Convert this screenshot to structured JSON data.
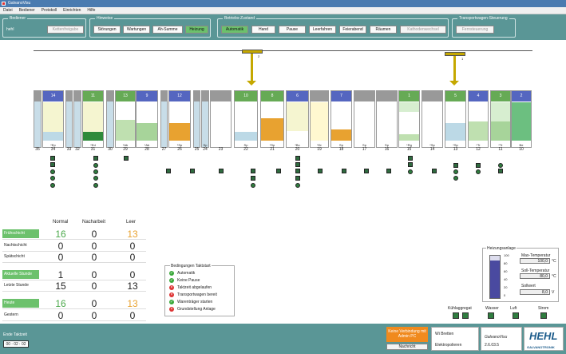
{
  "app": {
    "title": "GalvanoVisu"
  },
  "menu": [
    "Datei",
    "Bediener",
    "Protokoll",
    "Einrichten",
    "Hilfe"
  ],
  "ribbon": {
    "bediener": {
      "label": "Bediener",
      "user": "hehl",
      "button": "Kettenfreigabe"
    },
    "hinweise": {
      "label": "Hinweise",
      "buttons": [
        "Störungen",
        "Wartungen",
        "Ah-Summe",
        "Heizung"
      ]
    },
    "zustand": {
      "label": "Betriebs-Zustand",
      "buttons": [
        "Automatik",
        "Hand",
        "Pause",
        "Leerfahren",
        "Feierabend",
        "Räumen",
        "Kathodenwechsel"
      ]
    },
    "transport": {
      "label": "Transportwagen-Steuerung",
      "button": "Fernsteuerung"
    }
  },
  "carriers": [
    {
      "label": "2"
    },
    {
      "label": "1"
    }
  ],
  "stations": [
    {
      "hdr": "",
      "name": "",
      "nr": "35",
      "color": "gray"
    },
    {
      "hdr": "14",
      "name": "*Ep",
      "nr": "34",
      "color": "blue"
    },
    {
      "hdr": "",
      "name": "",
      "nr": "33",
      "color": "gray"
    },
    {
      "hdr": "",
      "name": "",
      "nr": "32",
      "color": "gray"
    },
    {
      "hdr": "11",
      "name": "*Ed",
      "nr": "31",
      "color": "green"
    },
    {
      "hdr": "",
      "name": "",
      "nr": "30",
      "color": "gray"
    },
    {
      "hdr": "13",
      "name": "*Ab",
      "nr": "29",
      "color": "green"
    },
    {
      "hdr": "9",
      "name": "*Ab",
      "nr": "28",
      "color": "blue"
    },
    {
      "hdr": "",
      "name": "",
      "nr": "27",
      "color": "gray"
    },
    {
      "hdr": "12",
      "name": "*Sp",
      "nr": "26",
      "color": "blue"
    },
    {
      "hdr": "",
      "name": "",
      "nr": "25",
      "color": "gray"
    },
    {
      "hdr": "",
      "name": "Sp",
      "nr": "24",
      "color": "gray"
    },
    {
      "hdr": "",
      "name": "",
      "nr": "23",
      "color": "gray"
    },
    {
      "hdr": "10",
      "name": "Sp",
      "nr": "22",
      "color": "green"
    },
    {
      "hdr": "8",
      "name": "*Sp",
      "nr": "21",
      "color": "green"
    },
    {
      "hdr": "6",
      "name": "*Bc",
      "nr": "20",
      "color": "blue"
    },
    {
      "hdr": "",
      "name": "*Dr",
      "nr": "19",
      "color": "gray"
    },
    {
      "hdr": "7",
      "name": "Sp",
      "nr": "18",
      "color": "blue"
    },
    {
      "hdr": "",
      "name": "Sp",
      "nr": "17",
      "color": "gray"
    },
    {
      "hdr": "",
      "name": "Sp",
      "nr": "16",
      "color": "gray"
    },
    {
      "hdr": "1",
      "name": "*Rg",
      "nr": "15",
      "color": "green"
    },
    {
      "hdr": "",
      "name": "*Sp",
      "nr": "14",
      "color": "gray"
    },
    {
      "hdr": "5",
      "name": "*Sp",
      "nr": "13",
      "color": "green"
    },
    {
      "hdr": "4",
      "name": "*Tr",
      "nr": "12",
      "color": "blue"
    },
    {
      "hdr": "3",
      "name": "*Tr",
      "nr": "11",
      "color": "green"
    },
    {
      "hdr": "2",
      "name": "Be",
      "nr": "10",
      "color": "blue"
    }
  ],
  "stats": {
    "headers": [
      "Normal",
      "Nacharbeit",
      "Leer"
    ],
    "rows": [
      {
        "label": "Frühschicht",
        "vals": [
          "16",
          "0",
          "13"
        ],
        "hl": true
      },
      {
        "label": "Nachtschicht",
        "vals": [
          "0",
          "0",
          "0"
        ],
        "hl": false
      },
      {
        "label": "Spätschicht",
        "vals": [
          "0",
          "0",
          "0"
        ],
        "hl": false
      },
      {
        "label": "Aktuelle Stunde",
        "vals": [
          "1",
          "0",
          "0"
        ],
        "hl": true
      },
      {
        "label": "Letzte Stunde",
        "vals": [
          "15",
          "0",
          "13"
        ],
        "hl": false
      },
      {
        "label": "Heute",
        "vals": [
          "16",
          "0",
          "13"
        ],
        "hl": true
      },
      {
        "label": "Gestern",
        "vals": [
          "0",
          "0",
          "0"
        ],
        "hl": false
      }
    ]
  },
  "bedingungen": {
    "title": "Bedingungen Taktstart",
    "items": [
      {
        "text": "Automatik",
        "ok": true
      },
      {
        "text": "Keine Pause",
        "ok": true
      },
      {
        "text": "Taktzeit abgelaufen",
        "ok": false
      },
      {
        "text": "Transportwagen bereit",
        "ok": false
      },
      {
        "text": "Warenträger starten",
        "ok": true
      },
      {
        "text": "Grundstellung Anlage",
        "ok": false
      }
    ]
  },
  "heizung": {
    "title": "Heizungsanlage",
    "scale": [
      "100",
      "80",
      "60",
      "40",
      "20",
      "0"
    ],
    "max_label": "Max-Temperatur",
    "max_val": "100,0",
    "soll_label": "Soll-Temperatur",
    "soll_val": "80,0",
    "ist_label": "Sollwert",
    "ist_val": "8,0",
    "unit_c": "°C",
    "unit_v": "V"
  },
  "aggregate": [
    {
      "label": "Kühlaggregat"
    },
    {
      "label": "Wasser"
    },
    {
      "label": "Luft"
    },
    {
      "label": "Strom"
    }
  ],
  "footer": {
    "takt_label": "Ende Taktzeit",
    "takt_val": "00 : 02 : 02",
    "warn": "Keine Verbindung mit Admin PC",
    "msg_btn": "Nachricht",
    "company": "Wi Bretten",
    "process": "Elektropolieren",
    "app": "GalvanoVisu",
    "version": "2.6.03.5",
    "logo": "HEHL",
    "logo_sub": "GALVANOTRONIK"
  }
}
